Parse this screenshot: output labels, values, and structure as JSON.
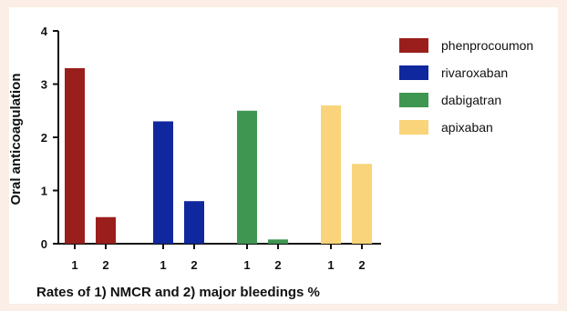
{
  "chart_data": {
    "type": "bar",
    "categories": [
      "1",
      "2"
    ],
    "series": [
      {
        "name": "phenprocoumon",
        "color": "#9a1f1c",
        "values": [
          3.3,
          0.5
        ]
      },
      {
        "name": "rivaroxaban",
        "color": "#10289e",
        "values": [
          2.3,
          0.8
        ]
      },
      {
        "name": "dabigatran",
        "color": "#3f9651",
        "values": [
          2.5,
          0.08
        ]
      },
      {
        "name": "apixaban",
        "color": "#f9d47a",
        "values": [
          2.6,
          1.5
        ]
      }
    ],
    "ylabel": "Oral anticoagulation",
    "xlabel": "Rates of 1) NMCR and 2) major bleedings %",
    "ylim": [
      0,
      4
    ],
    "yticks": [
      0,
      1,
      2,
      3,
      4
    ],
    "legend_position": "right",
    "grid": false
  }
}
